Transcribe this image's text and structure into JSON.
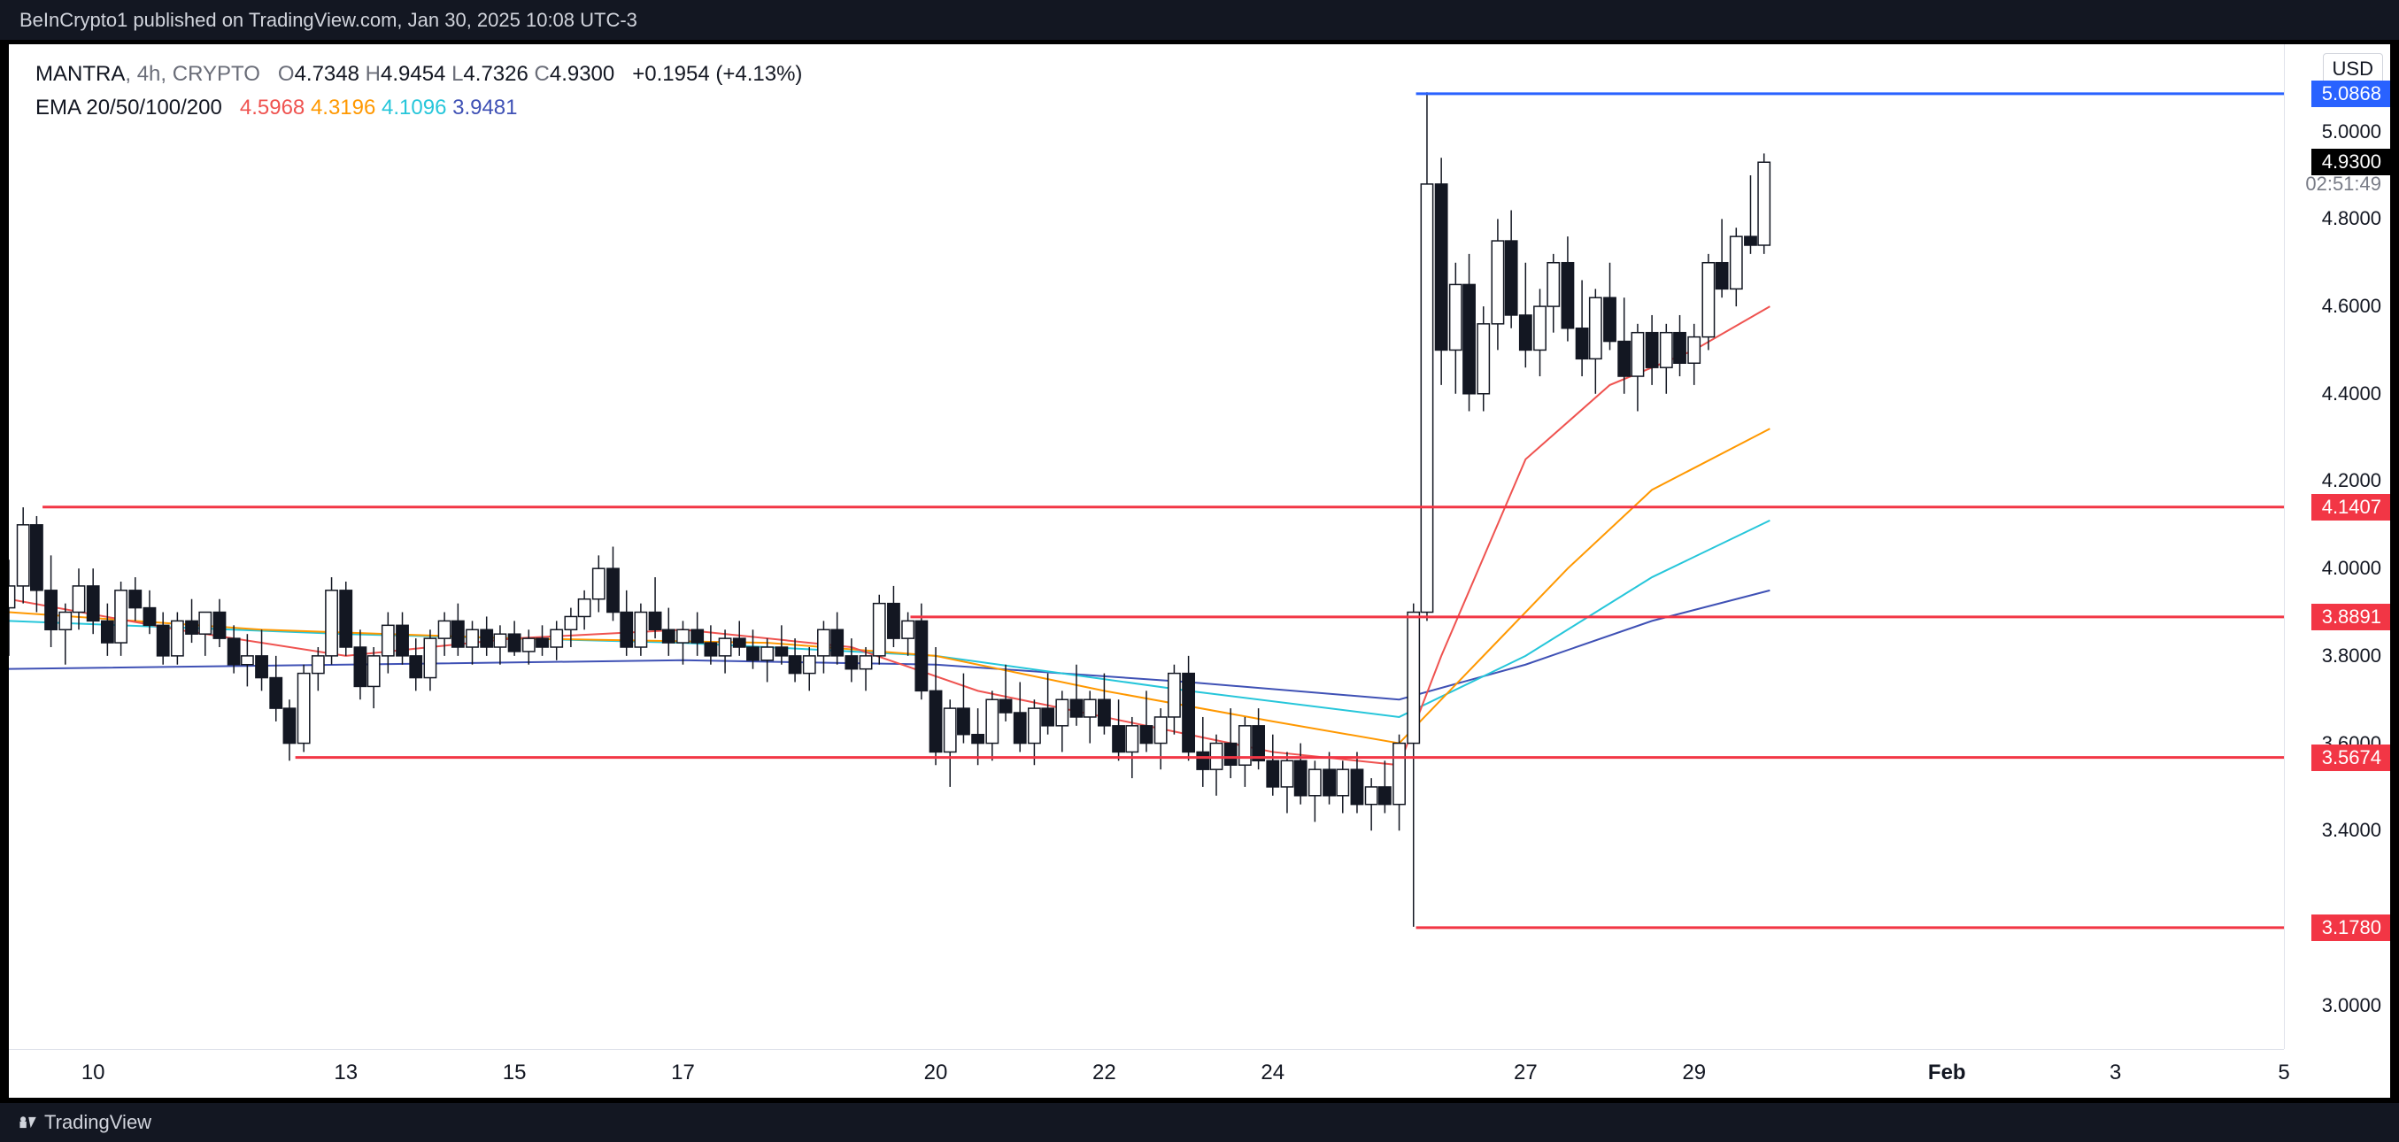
{
  "header": {
    "publish_text": "BeInCrypto1 published on TradingView.com, Jan 30, 2025 10:08 UTC-3"
  },
  "footer": {
    "brand": "TradingView"
  },
  "chart": {
    "symbol": "MANTRA",
    "interval": "4h",
    "exchange": "CRYPTO",
    "ohlc": {
      "O": "4.7348",
      "H": "4.9454",
      "L": "4.7326",
      "C": "4.9300"
    },
    "change_abs": "+0.1954",
    "change_pct": "(+4.13%)",
    "change_color": "#131722",
    "currency": "USD",
    "countdown": "02:51:49"
  },
  "ema": {
    "label": "EMA 20/50/100/200",
    "values": [
      "4.5968",
      "4.3196",
      "4.1096",
      "3.9481"
    ],
    "colors": [
      "#ef5350",
      "#ff9800",
      "#26c6da",
      "#3f51b5"
    ]
  },
  "axes": {
    "x": {
      "ticks": [
        10,
        13,
        15,
        17,
        20,
        22,
        24,
        27,
        29,
        "Feb",
        3,
        5
      ],
      "bold": [
        "Feb"
      ],
      "domain_days": [
        9,
        36
      ]
    },
    "y": {
      "domain": [
        2.9,
        5.2
      ],
      "ticks": [
        3.0,
        3.4,
        3.6,
        3.8,
        4.0,
        4.2,
        4.4,
        4.6,
        4.8,
        5.0
      ],
      "extra": [
        {
          "value": 4.93,
          "style": "pill",
          "color": "#000000",
          "label": "4.9300"
        }
      ],
      "countdown_at": 4.88
    }
  },
  "hlines": [
    {
      "value": 5.0868,
      "color": "#2962ff",
      "label": "5.0868",
      "pill": "#2962ff",
      "x_from_day": 25.7
    },
    {
      "value": 4.1407,
      "color": "#f23645",
      "label": "4.1407",
      "pill": "#f23645",
      "x_from_day": 9.4
    },
    {
      "value": 3.8891,
      "color": "#f23645",
      "label": "3.8891",
      "pill": "#f23645",
      "x_from_day": 19.7
    },
    {
      "value": 3.5674,
      "color": "#f23645",
      "label": "3.5674",
      "pill": "#f23645",
      "x_from_day": 12.4
    },
    {
      "value": 3.178,
      "color": "#f23645",
      "label": "3.1780",
      "pill": "#f23645",
      "x_from_day": 25.7
    }
  ],
  "candles": [
    {
      "t": 9.0,
      "o": 3.91,
      "h": 4.02,
      "l": 3.8,
      "c": 3.96
    },
    {
      "t": 9.17,
      "o": 3.96,
      "h": 4.14,
      "l": 3.92,
      "c": 4.1
    },
    {
      "t": 9.33,
      "o": 4.1,
      "h": 4.12,
      "l": 3.9,
      "c": 3.95
    },
    {
      "t": 9.5,
      "o": 3.95,
      "h": 4.03,
      "l": 3.82,
      "c": 3.86
    },
    {
      "t": 9.67,
      "o": 3.86,
      "h": 3.92,
      "l": 3.78,
      "c": 3.9
    },
    {
      "t": 9.83,
      "o": 3.9,
      "h": 4.0,
      "l": 3.86,
      "c": 3.96
    },
    {
      "t": 10.0,
      "o": 3.96,
      "h": 4.0,
      "l": 3.85,
      "c": 3.88
    },
    {
      "t": 10.17,
      "o": 3.88,
      "h": 3.92,
      "l": 3.8,
      "c": 3.83
    },
    {
      "t": 10.33,
      "o": 3.83,
      "h": 3.97,
      "l": 3.8,
      "c": 3.95
    },
    {
      "t": 10.5,
      "o": 3.95,
      "h": 3.98,
      "l": 3.88,
      "c": 3.91
    },
    {
      "t": 10.67,
      "o": 3.91,
      "h": 3.95,
      "l": 3.85,
      "c": 3.87
    },
    {
      "t": 10.83,
      "o": 3.87,
      "h": 3.9,
      "l": 3.78,
      "c": 3.8
    },
    {
      "t": 11.0,
      "o": 3.8,
      "h": 3.9,
      "l": 3.78,
      "c": 3.88
    },
    {
      "t": 11.17,
      "o": 3.88,
      "h": 3.93,
      "l": 3.83,
      "c": 3.85
    },
    {
      "t": 11.33,
      "o": 3.85,
      "h": 3.9,
      "l": 3.8,
      "c": 3.9
    },
    {
      "t": 11.5,
      "o": 3.9,
      "h": 3.93,
      "l": 3.82,
      "c": 3.84
    },
    {
      "t": 11.67,
      "o": 3.84,
      "h": 3.87,
      "l": 3.76,
      "c": 3.78
    },
    {
      "t": 11.83,
      "o": 3.78,
      "h": 3.85,
      "l": 3.73,
      "c": 3.8
    },
    {
      "t": 12.0,
      "o": 3.8,
      "h": 3.86,
      "l": 3.72,
      "c": 3.75
    },
    {
      "t": 12.17,
      "o": 3.75,
      "h": 3.8,
      "l": 3.65,
      "c": 3.68
    },
    {
      "t": 12.33,
      "o": 3.68,
      "h": 3.7,
      "l": 3.56,
      "c": 3.6
    },
    {
      "t": 12.5,
      "o": 3.6,
      "h": 3.78,
      "l": 3.58,
      "c": 3.76
    },
    {
      "t": 12.67,
      "o": 3.76,
      "h": 3.82,
      "l": 3.72,
      "c": 3.8
    },
    {
      "t": 12.83,
      "o": 3.8,
      "h": 3.98,
      "l": 3.78,
      "c": 3.95
    },
    {
      "t": 13.0,
      "o": 3.95,
      "h": 3.97,
      "l": 3.8,
      "c": 3.82
    },
    {
      "t": 13.17,
      "o": 3.82,
      "h": 3.86,
      "l": 3.7,
      "c": 3.73
    },
    {
      "t": 13.33,
      "o": 3.73,
      "h": 3.82,
      "l": 3.68,
      "c": 3.8
    },
    {
      "t": 13.5,
      "o": 3.8,
      "h": 3.9,
      "l": 3.76,
      "c": 3.87
    },
    {
      "t": 13.67,
      "o": 3.87,
      "h": 3.9,
      "l": 3.78,
      "c": 3.8
    },
    {
      "t": 13.83,
      "o": 3.8,
      "h": 3.84,
      "l": 3.72,
      "c": 3.75
    },
    {
      "t": 14.0,
      "o": 3.75,
      "h": 3.86,
      "l": 3.72,
      "c": 3.84
    },
    {
      "t": 14.17,
      "o": 3.84,
      "h": 3.9,
      "l": 3.8,
      "c": 3.88
    },
    {
      "t": 14.33,
      "o": 3.88,
      "h": 3.92,
      "l": 3.8,
      "c": 3.82
    },
    {
      "t": 14.5,
      "o": 3.82,
      "h": 3.88,
      "l": 3.78,
      "c": 3.86
    },
    {
      "t": 14.67,
      "o": 3.86,
      "h": 3.89,
      "l": 3.8,
      "c": 3.82
    },
    {
      "t": 14.83,
      "o": 3.82,
      "h": 3.87,
      "l": 3.78,
      "c": 3.85
    },
    {
      "t": 15.0,
      "o": 3.85,
      "h": 3.88,
      "l": 3.8,
      "c": 3.81
    },
    {
      "t": 15.17,
      "o": 3.81,
      "h": 3.86,
      "l": 3.78,
      "c": 3.84
    },
    {
      "t": 15.33,
      "o": 3.84,
      "h": 3.87,
      "l": 3.8,
      "c": 3.82
    },
    {
      "t": 15.5,
      "o": 3.82,
      "h": 3.88,
      "l": 3.79,
      "c": 3.86
    },
    {
      "t": 15.67,
      "o": 3.86,
      "h": 3.91,
      "l": 3.82,
      "c": 3.89
    },
    {
      "t": 15.83,
      "o": 3.89,
      "h": 3.95,
      "l": 3.86,
      "c": 3.93
    },
    {
      "t": 16.0,
      "o": 3.93,
      "h": 4.03,
      "l": 3.9,
      "c": 4.0
    },
    {
      "t": 16.17,
      "o": 4.0,
      "h": 4.05,
      "l": 3.88,
      "c": 3.9
    },
    {
      "t": 16.33,
      "o": 3.9,
      "h": 3.95,
      "l": 3.8,
      "c": 3.82
    },
    {
      "t": 16.5,
      "o": 3.82,
      "h": 3.92,
      "l": 3.8,
      "c": 3.9
    },
    {
      "t": 16.67,
      "o": 3.9,
      "h": 3.98,
      "l": 3.84,
      "c": 3.86
    },
    {
      "t": 16.83,
      "o": 3.86,
      "h": 3.91,
      "l": 3.8,
      "c": 3.83
    },
    {
      "t": 17.0,
      "o": 3.83,
      "h": 3.88,
      "l": 3.78,
      "c": 3.86
    },
    {
      "t": 17.17,
      "o": 3.86,
      "h": 3.9,
      "l": 3.8,
      "c": 3.83
    },
    {
      "t": 17.33,
      "o": 3.83,
      "h": 3.87,
      "l": 3.78,
      "c": 3.8
    },
    {
      "t": 17.5,
      "o": 3.8,
      "h": 3.86,
      "l": 3.76,
      "c": 3.84
    },
    {
      "t": 17.67,
      "o": 3.84,
      "h": 3.88,
      "l": 3.8,
      "c": 3.82
    },
    {
      "t": 17.83,
      "o": 3.82,
      "h": 3.86,
      "l": 3.77,
      "c": 3.79
    },
    {
      "t": 18.0,
      "o": 3.79,
      "h": 3.84,
      "l": 3.74,
      "c": 3.82
    },
    {
      "t": 18.17,
      "o": 3.82,
      "h": 3.87,
      "l": 3.78,
      "c": 3.8
    },
    {
      "t": 18.33,
      "o": 3.8,
      "h": 3.84,
      "l": 3.74,
      "c": 3.76
    },
    {
      "t": 18.5,
      "o": 3.76,
      "h": 3.82,
      "l": 3.72,
      "c": 3.8
    },
    {
      "t": 18.67,
      "o": 3.8,
      "h": 3.88,
      "l": 3.76,
      "c": 3.86
    },
    {
      "t": 18.83,
      "o": 3.86,
      "h": 3.9,
      "l": 3.78,
      "c": 3.8
    },
    {
      "t": 19.0,
      "o": 3.8,
      "h": 3.84,
      "l": 3.74,
      "c": 3.77
    },
    {
      "t": 19.17,
      "o": 3.77,
      "h": 3.82,
      "l": 3.72,
      "c": 3.8
    },
    {
      "t": 19.33,
      "o": 3.8,
      "h": 3.94,
      "l": 3.78,
      "c": 3.92
    },
    {
      "t": 19.5,
      "o": 3.92,
      "h": 3.96,
      "l": 3.82,
      "c": 3.84
    },
    {
      "t": 19.67,
      "o": 3.84,
      "h": 3.9,
      "l": 3.8,
      "c": 3.88
    },
    {
      "t": 19.83,
      "o": 3.88,
      "h": 3.92,
      "l": 3.7,
      "c": 3.72
    },
    {
      "t": 20.0,
      "o": 3.72,
      "h": 3.82,
      "l": 3.55,
      "c": 3.58
    },
    {
      "t": 20.17,
      "o": 3.58,
      "h": 3.7,
      "l": 3.5,
      "c": 3.68
    },
    {
      "t": 20.33,
      "o": 3.68,
      "h": 3.76,
      "l": 3.6,
      "c": 3.62
    },
    {
      "t": 20.5,
      "o": 3.62,
      "h": 3.68,
      "l": 3.55,
      "c": 3.6
    },
    {
      "t": 20.67,
      "o": 3.6,
      "h": 3.72,
      "l": 3.56,
      "c": 3.7
    },
    {
      "t": 20.83,
      "o": 3.7,
      "h": 3.78,
      "l": 3.65,
      "c": 3.67
    },
    {
      "t": 21.0,
      "o": 3.67,
      "h": 3.74,
      "l": 3.58,
      "c": 3.6
    },
    {
      "t": 21.17,
      "o": 3.6,
      "h": 3.7,
      "l": 3.55,
      "c": 3.68
    },
    {
      "t": 21.33,
      "o": 3.68,
      "h": 3.76,
      "l": 3.62,
      "c": 3.64
    },
    {
      "t": 21.5,
      "o": 3.64,
      "h": 3.72,
      "l": 3.58,
      "c": 3.7
    },
    {
      "t": 21.67,
      "o": 3.7,
      "h": 3.78,
      "l": 3.64,
      "c": 3.66
    },
    {
      "t": 21.83,
      "o": 3.66,
      "h": 3.72,
      "l": 3.6,
      "c": 3.7
    },
    {
      "t": 22.0,
      "o": 3.7,
      "h": 3.76,
      "l": 3.62,
      "c": 3.64
    },
    {
      "t": 22.17,
      "o": 3.64,
      "h": 3.7,
      "l": 3.56,
      "c": 3.58
    },
    {
      "t": 22.33,
      "o": 3.58,
      "h": 3.66,
      "l": 3.52,
      "c": 3.64
    },
    {
      "t": 22.5,
      "o": 3.64,
      "h": 3.72,
      "l": 3.58,
      "c": 3.6
    },
    {
      "t": 22.67,
      "o": 3.6,
      "h": 3.68,
      "l": 3.54,
      "c": 3.66
    },
    {
      "t": 22.83,
      "o": 3.66,
      "h": 3.78,
      "l": 3.62,
      "c": 3.76
    },
    {
      "t": 23.0,
      "o": 3.76,
      "h": 3.8,
      "l": 3.56,
      "c": 3.58
    },
    {
      "t": 23.17,
      "o": 3.58,
      "h": 3.66,
      "l": 3.5,
      "c": 3.54
    },
    {
      "t": 23.33,
      "o": 3.54,
      "h": 3.62,
      "l": 3.48,
      "c": 3.6
    },
    {
      "t": 23.5,
      "o": 3.6,
      "h": 3.68,
      "l": 3.52,
      "c": 3.55
    },
    {
      "t": 23.67,
      "o": 3.55,
      "h": 3.66,
      "l": 3.5,
      "c": 3.64
    },
    {
      "t": 23.83,
      "o": 3.64,
      "h": 3.68,
      "l": 3.54,
      "c": 3.56
    },
    {
      "t": 24.0,
      "o": 3.56,
      "h": 3.62,
      "l": 3.48,
      "c": 3.5
    },
    {
      "t": 24.17,
      "o": 3.5,
      "h": 3.58,
      "l": 3.44,
      "c": 3.56
    },
    {
      "t": 24.33,
      "o": 3.56,
      "h": 3.6,
      "l": 3.46,
      "c": 3.48
    },
    {
      "t": 24.5,
      "o": 3.48,
      "h": 3.56,
      "l": 3.42,
      "c": 3.54
    },
    {
      "t": 24.67,
      "o": 3.54,
      "h": 3.58,
      "l": 3.46,
      "c": 3.48
    },
    {
      "t": 24.83,
      "o": 3.48,
      "h": 3.56,
      "l": 3.44,
      "c": 3.54
    },
    {
      "t": 25.0,
      "o": 3.54,
      "h": 3.58,
      "l": 3.44,
      "c": 3.46
    },
    {
      "t": 25.17,
      "o": 3.46,
      "h": 3.52,
      "l": 3.4,
      "c": 3.5
    },
    {
      "t": 25.33,
      "o": 3.5,
      "h": 3.56,
      "l": 3.44,
      "c": 3.46
    },
    {
      "t": 25.5,
      "o": 3.46,
      "h": 3.62,
      "l": 3.4,
      "c": 3.6
    },
    {
      "t": 25.67,
      "o": 3.6,
      "h": 3.92,
      "l": 3.18,
      "c": 3.9
    },
    {
      "t": 25.83,
      "o": 3.9,
      "h": 5.09,
      "l": 3.88,
      "c": 4.88
    },
    {
      "t": 26.0,
      "o": 4.88,
      "h": 4.94,
      "l": 4.42,
      "c": 4.5
    },
    {
      "t": 26.17,
      "o": 4.5,
      "h": 4.7,
      "l": 4.4,
      "c": 4.65
    },
    {
      "t": 26.33,
      "o": 4.65,
      "h": 4.72,
      "l": 4.36,
      "c": 4.4
    },
    {
      "t": 26.5,
      "o": 4.4,
      "h": 4.6,
      "l": 4.36,
      "c": 4.56
    },
    {
      "t": 26.67,
      "o": 4.56,
      "h": 4.8,
      "l": 4.5,
      "c": 4.75
    },
    {
      "t": 26.83,
      "o": 4.75,
      "h": 4.82,
      "l": 4.55,
      "c": 4.58
    },
    {
      "t": 27.0,
      "o": 4.58,
      "h": 4.7,
      "l": 4.46,
      "c": 4.5
    },
    {
      "t": 27.17,
      "o": 4.5,
      "h": 4.64,
      "l": 4.44,
      "c": 4.6
    },
    {
      "t": 27.33,
      "o": 4.6,
      "h": 4.72,
      "l": 4.54,
      "c": 4.7
    },
    {
      "t": 27.5,
      "o": 4.7,
      "h": 4.76,
      "l": 4.52,
      "c": 4.55
    },
    {
      "t": 27.67,
      "o": 4.55,
      "h": 4.66,
      "l": 4.44,
      "c": 4.48
    },
    {
      "t": 27.83,
      "o": 4.48,
      "h": 4.64,
      "l": 4.4,
      "c": 4.62
    },
    {
      "t": 28.0,
      "o": 4.62,
      "h": 4.7,
      "l": 4.5,
      "c": 4.52
    },
    {
      "t": 28.17,
      "o": 4.52,
      "h": 4.62,
      "l": 4.4,
      "c": 4.44
    },
    {
      "t": 28.33,
      "o": 4.44,
      "h": 4.56,
      "l": 4.36,
      "c": 4.54
    },
    {
      "t": 28.5,
      "o": 4.54,
      "h": 4.58,
      "l": 4.42,
      "c": 4.46
    },
    {
      "t": 28.67,
      "o": 4.46,
      "h": 4.56,
      "l": 4.4,
      "c": 4.54
    },
    {
      "t": 28.83,
      "o": 4.54,
      "h": 4.58,
      "l": 4.44,
      "c": 4.47
    },
    {
      "t": 29.0,
      "o": 4.47,
      "h": 4.56,
      "l": 4.42,
      "c": 4.53
    },
    {
      "t": 29.17,
      "o": 4.53,
      "h": 4.72,
      "l": 4.5,
      "c": 4.7
    },
    {
      "t": 29.33,
      "o": 4.7,
      "h": 4.8,
      "l": 4.62,
      "c": 4.64
    },
    {
      "t": 29.5,
      "o": 4.64,
      "h": 4.78,
      "l": 4.6,
      "c": 4.76
    },
    {
      "t": 29.67,
      "o": 4.76,
      "h": 4.9,
      "l": 4.72,
      "c": 4.74
    },
    {
      "t": 29.83,
      "o": 4.74,
      "h": 4.95,
      "l": 4.72,
      "c": 4.93
    }
  ],
  "ema_lines": {
    "ema20": [
      {
        "t": 9.0,
        "v": 3.93
      },
      {
        "t": 11,
        "v": 3.86
      },
      {
        "t": 13,
        "v": 3.8
      },
      {
        "t": 15,
        "v": 3.84
      },
      {
        "t": 17,
        "v": 3.86
      },
      {
        "t": 19,
        "v": 3.82
      },
      {
        "t": 20.5,
        "v": 3.72
      },
      {
        "t": 22,
        "v": 3.66
      },
      {
        "t": 24,
        "v": 3.58
      },
      {
        "t": 25.5,
        "v": 3.55
      },
      {
        "t": 26,
        "v": 3.8
      },
      {
        "t": 27,
        "v": 4.25
      },
      {
        "t": 28,
        "v": 4.42
      },
      {
        "t": 29,
        "v": 4.5
      },
      {
        "t": 29.9,
        "v": 4.6
      }
    ],
    "ema50": [
      {
        "t": 9.0,
        "v": 3.9
      },
      {
        "t": 12,
        "v": 3.86
      },
      {
        "t": 15,
        "v": 3.84
      },
      {
        "t": 18,
        "v": 3.83
      },
      {
        "t": 20,
        "v": 3.8
      },
      {
        "t": 22,
        "v": 3.72
      },
      {
        "t": 24,
        "v": 3.65
      },
      {
        "t": 25.5,
        "v": 3.6
      },
      {
        "t": 26.5,
        "v": 3.8
      },
      {
        "t": 27.5,
        "v": 4.0
      },
      {
        "t": 28.5,
        "v": 4.18
      },
      {
        "t": 29.9,
        "v": 4.32
      }
    ],
    "ema100": [
      {
        "t": 9.0,
        "v": 3.88
      },
      {
        "t": 13,
        "v": 3.85
      },
      {
        "t": 17,
        "v": 3.83
      },
      {
        "t": 20,
        "v": 3.8
      },
      {
        "t": 23,
        "v": 3.72
      },
      {
        "t": 25.5,
        "v": 3.66
      },
      {
        "t": 27,
        "v": 3.8
      },
      {
        "t": 28.5,
        "v": 3.98
      },
      {
        "t": 29.9,
        "v": 4.11
      }
    ],
    "ema200": [
      {
        "t": 9.0,
        "v": 3.77
      },
      {
        "t": 13,
        "v": 3.78
      },
      {
        "t": 17,
        "v": 3.79
      },
      {
        "t": 20,
        "v": 3.78
      },
      {
        "t": 23,
        "v": 3.74
      },
      {
        "t": 25.5,
        "v": 3.7
      },
      {
        "t": 27,
        "v": 3.78
      },
      {
        "t": 28.5,
        "v": 3.88
      },
      {
        "t": 29.9,
        "v": 3.95
      }
    ]
  },
  "style": {
    "up_color": "#ffffff",
    "up_border": "#131722",
    "down_color": "#131722",
    "down_border": "#131722",
    "wick_color": "#131722",
    "grid_color": "#e0e3eb",
    "bg": "#ffffff",
    "candle_width_days": 0.14
  }
}
